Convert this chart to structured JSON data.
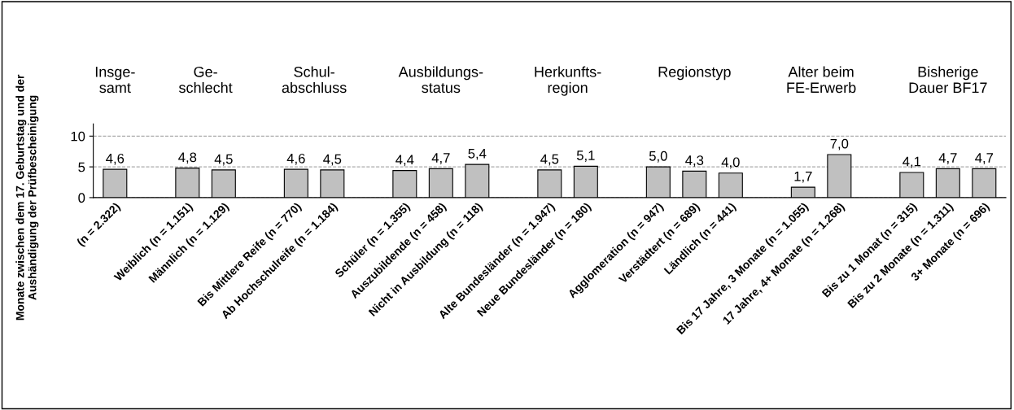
{
  "chart_data": {
    "type": "bar",
    "ylabel": "Monate zwischen dem 17. Geburtstag und der\nAushändigung der Prüfbescheinigung",
    "categories": [
      "(n = 2.322)",
      null,
      "Weiblich (n = 1.151)",
      "Männlich (n = 1.129)",
      null,
      "Bis Mittlere Reife (n = 770)",
      "Ab Hochschulreife (n = 1.184)",
      null,
      "Schüler (n = 1.355)",
      "Auszubildende (n = 458)",
      "Nicht in Ausbildung (n = 118)",
      null,
      "Alte Bundesländer (n = 1.947)",
      "Neue Bundesländer (n = 180)",
      null,
      "Agglomeration (n = 947)",
      "Verstädtert (n = 689)",
      "Ländlich (n = 441)",
      null,
      "Bis 17 Jahre, 3 Monate (n = 1.055)",
      "17 Jahre, 4+ Monate (n = 1.268)",
      null,
      "Bis zu 1 Monat (n = 315)",
      "Bis zu 2 Monate (n = 1.311)",
      "3+ Monate (n = 696)"
    ],
    "values": [
      4.6,
      null,
      4.8,
      4.5,
      null,
      4.6,
      4.5,
      null,
      4.4,
      4.7,
      5.4,
      null,
      4.5,
      5.1,
      null,
      5.0,
      4.3,
      4.0,
      null,
      1.7,
      7.0,
      null,
      4.1,
      4.7,
      4.7
    ],
    "value_labels": [
      "4,6",
      null,
      "4,8",
      "4,5",
      null,
      "4,6",
      "4,5",
      null,
      "4,4",
      "4,7",
      "5,4",
      null,
      "4,5",
      "5,1",
      null,
      "5,0",
      "4,3",
      "4,0",
      null,
      "1,7",
      "7,0",
      null,
      "4,1",
      "4,7",
      "4,7"
    ],
    "color": "#c0c0c0",
    "annotations": [
      "Insge-\nsamt",
      "Ge-\nschlecht",
      "Schul-\nabschluss",
      "Ausbildungs-\nstatus",
      "Herkunfts-\nregion",
      "Regionstyp",
      "Alter beim\nFE-Erwerb",
      "Bisherige\nDauer BF17"
    ],
    "ylim": [
      0,
      12
    ],
    "yticks": [
      0,
      5,
      10
    ],
    "grid": "y"
  }
}
